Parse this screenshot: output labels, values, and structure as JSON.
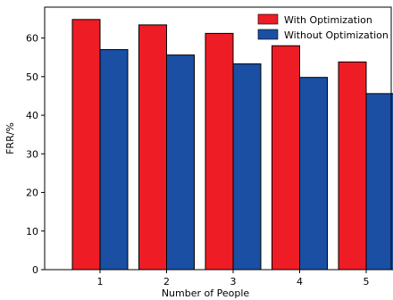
{
  "chart_data": {
    "type": "bar",
    "categories": [
      "1",
      "2",
      "3",
      "4",
      "5"
    ],
    "series": [
      {
        "name": "With Optimization",
        "color": "#ee1c25",
        "values": [
          64.8,
          63.4,
          61.2,
          58.0,
          53.8
        ]
      },
      {
        "name": "Without Optimization",
        "color": "#1a4fa3",
        "values": [
          57.0,
          55.6,
          53.3,
          49.8,
          45.6
        ]
      }
    ],
    "xlabel": "Number of People",
    "ylabel": "FRR/%",
    "ylim": [
      0,
      68
    ],
    "yticks": [
      0,
      10,
      20,
      30,
      40,
      50,
      60
    ],
    "grid": false,
    "legend_position": "top-right"
  }
}
